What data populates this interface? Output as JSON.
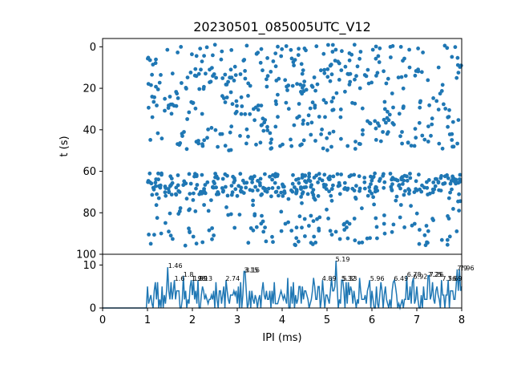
{
  "chart_data": [
    {
      "type": "scatter",
      "panel": "raster",
      "title": "20230501_085005UTC_V12",
      "xlabel": "",
      "ylabel": "t (s)",
      "xlim": [
        0,
        8
      ],
      "ylim": [
        100,
        -4
      ],
      "y_inverted": true,
      "yticks": [
        0,
        20,
        40,
        60,
        80,
        100
      ],
      "color": "#1f77b4",
      "bursts": [
        {
          "t_min": -1,
          "t_max": 50,
          "x_min": 1.0,
          "x_max": 8.0,
          "count": 430
        },
        {
          "t_min": 61,
          "t_max": 72,
          "x_min": 1.0,
          "x_max": 8.0,
          "count": 330
        },
        {
          "t_min": 72,
          "t_max": 96,
          "x_min": 1.0,
          "x_max": 8.0,
          "count": 150
        }
      ]
    },
    {
      "type": "line",
      "panel": "histogram",
      "xlabel": "IPI (ms)",
      "ylabel": "",
      "xlim": [
        0,
        8
      ],
      "ylim": [
        0,
        12.5
      ],
      "xticks": [
        0,
        1,
        2,
        3,
        4,
        5,
        6,
        7,
        8
      ],
      "yticks": [
        0,
        10
      ],
      "color": "#1f77b4",
      "peaks": [
        {
          "label": "1.46",
          "x": 1.46,
          "y": 9.5
        },
        {
          "label": "1.6",
          "x": 1.6,
          "y": 6.5
        },
        {
          "label": "1.8",
          "x": 1.8,
          "y": 7.5
        },
        {
          "label": "1.98",
          "x": 1.98,
          "y": 6.5
        },
        {
          "label": "1.99",
          "x": 2.02,
          "y": 6.5
        },
        {
          "label": "2.13",
          "x": 2.13,
          "y": 6.5
        },
        {
          "label": "2.74",
          "x": 2.74,
          "y": 6.5
        },
        {
          "label": "3.15",
          "x": 3.15,
          "y": 8.5
        },
        {
          "label": "3.16",
          "x": 3.18,
          "y": 8.5
        },
        {
          "label": "4.89",
          "x": 4.89,
          "y": 6.5
        },
        {
          "label": "5.19",
          "x": 5.19,
          "y": 11.0
        },
        {
          "label": "5.32",
          "x": 5.32,
          "y": 6.5
        },
        {
          "label": "5.33",
          "x": 5.35,
          "y": 6.5
        },
        {
          "label": "5.96",
          "x": 5.96,
          "y": 6.5
        },
        {
          "label": "6.49",
          "x": 6.49,
          "y": 6.5
        },
        {
          "label": "6.78",
          "x": 6.78,
          "y": 7.5
        },
        {
          "label": "6.92",
          "x": 6.92,
          "y": 7.0
        },
        {
          "label": "7.25",
          "x": 7.25,
          "y": 7.5
        },
        {
          "label": "7.26",
          "x": 7.28,
          "y": 7.5
        },
        {
          "label": "7.56",
          "x": 7.56,
          "y": 6.5
        },
        {
          "label": "7.69",
          "x": 7.69,
          "y": 6.5
        },
        {
          "label": "7.9",
          "x": 7.9,
          "y": 9.0
        },
        {
          "label": "7.96",
          "x": 7.96,
          "y": 9.0
        }
      ]
    }
  ]
}
